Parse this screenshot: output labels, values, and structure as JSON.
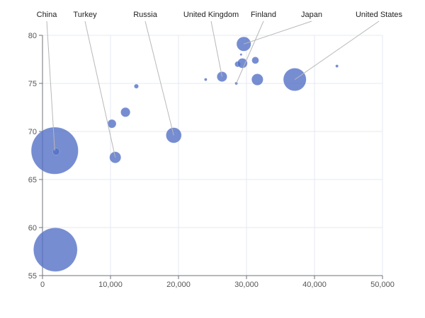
{
  "chart_data": {
    "type": "scatter",
    "title": "",
    "xlabel": "",
    "ylabel": "",
    "xlim": [
      0,
      50000
    ],
    "ylim": [
      55,
      80
    ],
    "x_ticks": [
      0,
      10000,
      20000,
      30000,
      40000,
      50000
    ],
    "x_tick_labels": [
      "0",
      "10,000",
      "20,000",
      "30,000",
      "40,000",
      "50,000"
    ],
    "y_ticks": [
      55,
      60,
      65,
      70,
      75,
      80
    ],
    "y_tick_labels": [
      "55",
      "60",
      "65",
      "70",
      "75",
      "80"
    ],
    "grid": true,
    "legend": false,
    "bubble_color": "#5470c6",
    "points": [
      {
        "label": "China",
        "x": 1800,
        "y": 68.0,
        "size": 1359
      },
      {
        "label": "",
        "x": 1900,
        "y": 57.7,
        "size": 1180
      },
      {
        "label": "",
        "x": 2000,
        "y": 67.9,
        "size": 30
      },
      {
        "label": "Turkey",
        "x": 10700,
        "y": 67.3,
        "size": 80
      },
      {
        "label": "",
        "x": 10200,
        "y": 70.8,
        "size": 46
      },
      {
        "label": "",
        "x": 12200,
        "y": 72.0,
        "size": 55
      },
      {
        "label": "",
        "x": 13800,
        "y": 74.7,
        "size": 12
      },
      {
        "label": "Russia",
        "x": 19300,
        "y": 69.6,
        "size": 146
      },
      {
        "label": "",
        "x": 24000,
        "y": 75.4,
        "size": 5
      },
      {
        "label": "United Kingdom",
        "x": 26400,
        "y": 75.7,
        "size": 63
      },
      {
        "label": "Finland",
        "x": 28500,
        "y": 75.0,
        "size": 5
      },
      {
        "label": "",
        "x": 28700,
        "y": 77.0,
        "size": 20
      },
      {
        "label": "",
        "x": 29200,
        "y": 78.0,
        "size": 3
      },
      {
        "label": "",
        "x": 29400,
        "y": 77.1,
        "size": 60
      },
      {
        "label": "Japan",
        "x": 29600,
        "y": 79.1,
        "size": 127
      },
      {
        "label": "",
        "x": 31300,
        "y": 77.4,
        "size": 30
      },
      {
        "label": "",
        "x": 31600,
        "y": 75.4,
        "size": 82
      },
      {
        "label": "United States",
        "x": 37100,
        "y": 75.4,
        "size": 321
      },
      {
        "label": "",
        "x": 43300,
        "y": 76.8,
        "size": 5
      }
    ]
  }
}
